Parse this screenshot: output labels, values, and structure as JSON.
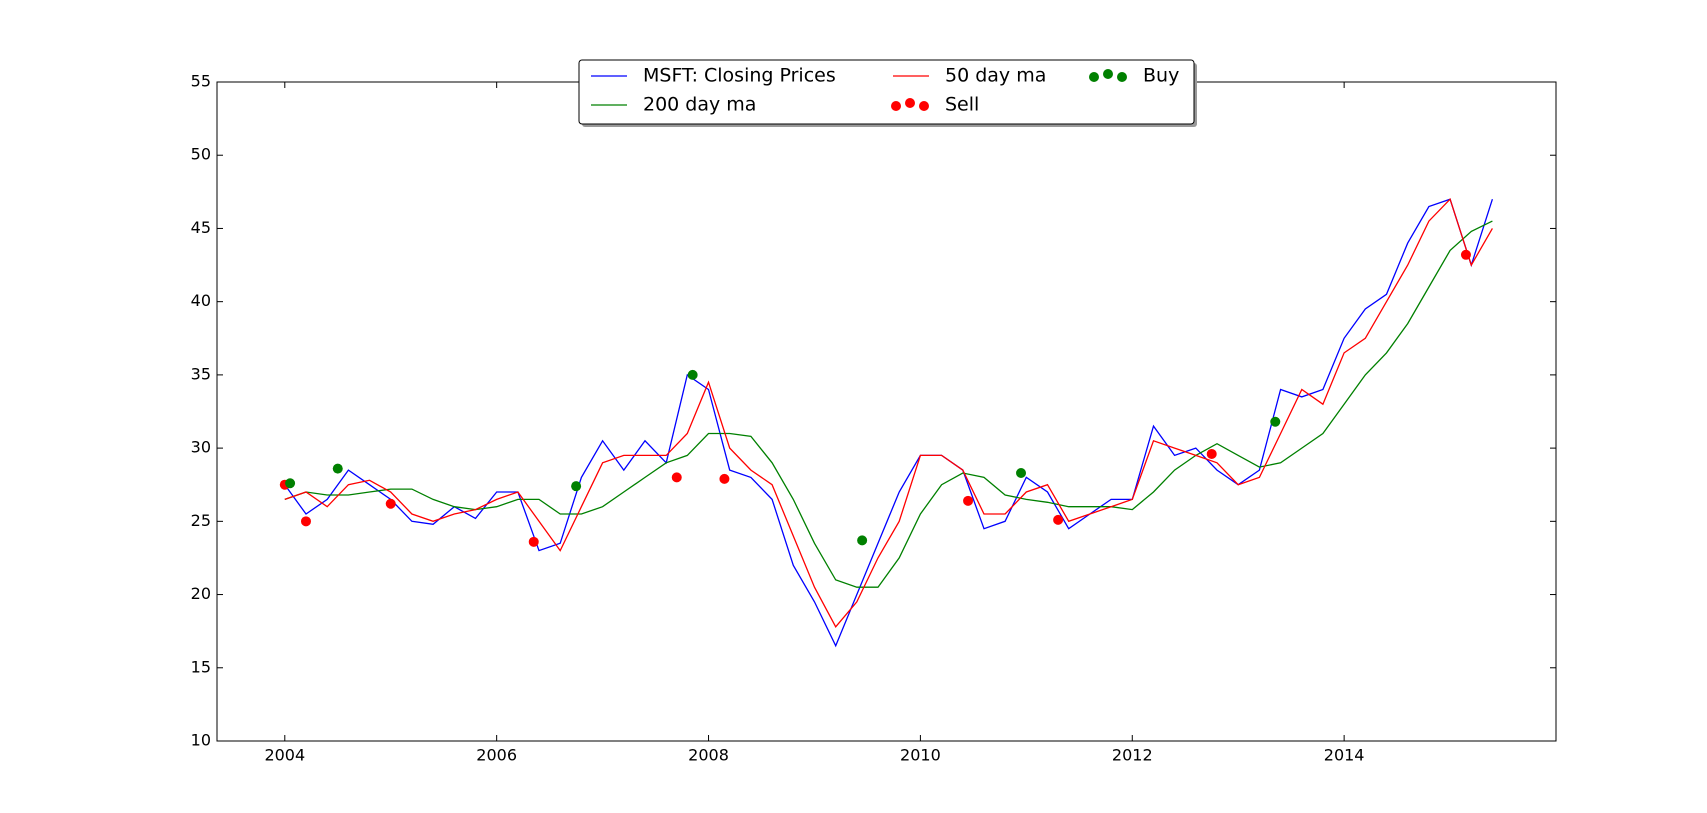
{
  "chart_data": {
    "type": "line",
    "xlim": [
      2003.36,
      2016.0
    ],
    "xticks": [
      2004,
      2006,
      2008,
      2010,
      2012,
      2014
    ],
    "ylim": [
      10,
      55
    ],
    "yticks": [
      10,
      15,
      20,
      25,
      30,
      35,
      40,
      45,
      50,
      55
    ],
    "legend": "upper center",
    "legend_columns": 3,
    "x": [
      2004.0,
      2004.2,
      2004.4,
      2004.6,
      2004.8,
      2005.0,
      2005.2,
      2005.4,
      2005.6,
      2005.8,
      2006.0,
      2006.2,
      2006.4,
      2006.6,
      2006.8,
      2007.0,
      2007.2,
      2007.4,
      2007.6,
      2007.8,
      2008.0,
      2008.2,
      2008.4,
      2008.6,
      2008.8,
      2009.0,
      2009.2,
      2009.4,
      2009.6,
      2009.8,
      2010.0,
      2010.2,
      2010.4,
      2010.6,
      2010.8,
      2011.0,
      2011.2,
      2011.4,
      2011.6,
      2011.8,
      2012.0,
      2012.2,
      2012.4,
      2012.6,
      2012.8,
      2013.0,
      2013.2,
      2013.4,
      2013.6,
      2013.8,
      2014.0,
      2014.2,
      2014.4,
      2014.6,
      2014.8,
      2015.0,
      2015.2,
      2015.4
    ],
    "series": [
      {
        "name": "MSFT: Closing Prices",
        "color": "#0000ff",
        "style": "line",
        "values": [
          27.5,
          25.5,
          26.5,
          28.5,
          27.5,
          26.5,
          25.0,
          24.8,
          26.0,
          25.2,
          27.0,
          27.0,
          23.0,
          23.5,
          28.0,
          30.5,
          28.5,
          30.5,
          29.0,
          35.0,
          34.0,
          28.5,
          28.0,
          26.5,
          22.0,
          19.5,
          16.5,
          20.0,
          23.5,
          27.0,
          29.5,
          29.5,
          28.5,
          24.5,
          25.0,
          28.0,
          27.0,
          24.5,
          25.5,
          26.5,
          26.5,
          31.5,
          29.5,
          30.0,
          28.5,
          27.5,
          28.5,
          34.0,
          33.5,
          34.0,
          37.5,
          39.5,
          40.5,
          44.0,
          46.5,
          47.0,
          42.5,
          47.0
        ]
      },
      {
        "name": "200 day ma",
        "color": "#008000",
        "style": "line",
        "values": [
          26.5,
          27.0,
          26.8,
          26.8,
          27.0,
          27.2,
          27.2,
          26.5,
          26.0,
          25.8,
          26.0,
          26.5,
          26.5,
          25.5,
          25.5,
          26.0,
          27.0,
          28.0,
          29.0,
          29.5,
          31.0,
          31.0,
          30.8,
          29.0,
          26.5,
          23.5,
          21.0,
          20.5,
          20.5,
          22.5,
          25.5,
          27.5,
          28.3,
          28.0,
          26.8,
          26.5,
          26.3,
          26.0,
          26.0,
          26.0,
          25.8,
          27.0,
          28.5,
          29.5,
          30.3,
          29.5,
          28.7,
          29.0,
          30.0,
          31.0,
          33.0,
          35.0,
          36.5,
          38.5,
          41.0,
          43.5,
          44.8,
          45.5
        ]
      },
      {
        "name": "50 day ma",
        "color": "#ff0000",
        "style": "line",
        "values": [
          26.5,
          27.0,
          26.0,
          27.5,
          27.8,
          27.0,
          25.5,
          25.0,
          25.5,
          25.8,
          26.5,
          27.0,
          25.0,
          23.0,
          26.0,
          29.0,
          29.5,
          29.5,
          29.5,
          31.0,
          34.5,
          30.0,
          28.5,
          27.5,
          24.0,
          20.5,
          17.8,
          19.5,
          22.5,
          25.0,
          29.5,
          29.5,
          28.5,
          25.5,
          25.5,
          27.0,
          27.5,
          25.0,
          25.5,
          26.0,
          26.5,
          30.5,
          30.0,
          29.5,
          29.0,
          27.5,
          28.0,
          31.0,
          34.0,
          33.0,
          36.5,
          37.5,
          40.0,
          42.5,
          45.5,
          47.0,
          42.5,
          45.0
        ]
      },
      {
        "name": "Sell",
        "color": "#ff0000",
        "style": "markers",
        "x": [
          2004.0,
          2004.2,
          2005.0,
          2006.35,
          2007.7,
          2008.15,
          2010.45,
          2011.3,
          2012.75,
          2015.15
        ],
        "values": [
          27.5,
          25.0,
          26.2,
          23.6,
          28.0,
          27.9,
          26.4,
          25.1,
          29.6,
          43.2
        ]
      },
      {
        "name": "Buy",
        "color": "#008000",
        "style": "markers",
        "x": [
          2004.05,
          2004.5,
          2006.75,
          2007.85,
          2009.45,
          2010.95,
          2013.35
        ],
        "values": [
          27.6,
          28.6,
          27.4,
          35.0,
          23.7,
          28.3,
          31.8
        ]
      }
    ]
  }
}
